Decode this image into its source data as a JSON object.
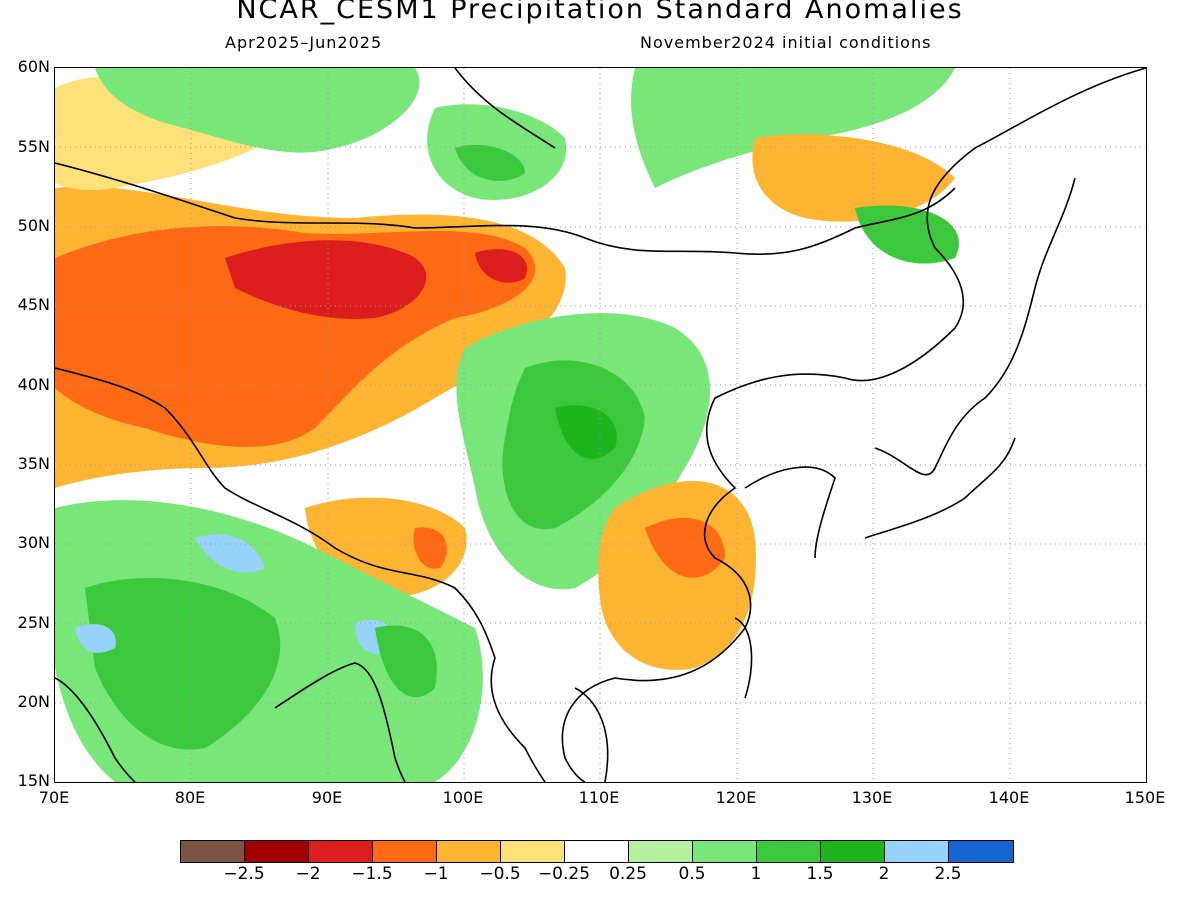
{
  "title": "NCAR_CESM1 Precipitation Standard Anomalies",
  "period": "Apr2025–Jun2025",
  "init": "November2024 initial conditions",
  "lat_labels": [
    "60N",
    "55N",
    "50N",
    "45N",
    "40N",
    "35N",
    "30N",
    "25N",
    "20N",
    "15N"
  ],
  "lon_labels": [
    "70E",
    "80E",
    "90E",
    "100E",
    "110E",
    "120E",
    "130E",
    "140E",
    "150E"
  ],
  "colorbar": {
    "colors": [
      "#7a5545",
      "#a00000",
      "#dc1e1e",
      "#ff6a14",
      "#ffb432",
      "#ffe17a",
      "#ffffff",
      "#b4f0a0",
      "#78e678",
      "#3cc83c",
      "#1eb41e",
      "#96d2fa",
      "#1464d2"
    ],
    "labels": [
      "−2.5",
      "−2",
      "−1.5",
      "−1",
      "−0.5",
      "−0.25",
      "0.25",
      "0.5",
      "1",
      "1.5",
      "2",
      "2.5"
    ]
  },
  "colors": {
    "land_outline": "#000000",
    "grid": "#9a9a9a"
  }
}
